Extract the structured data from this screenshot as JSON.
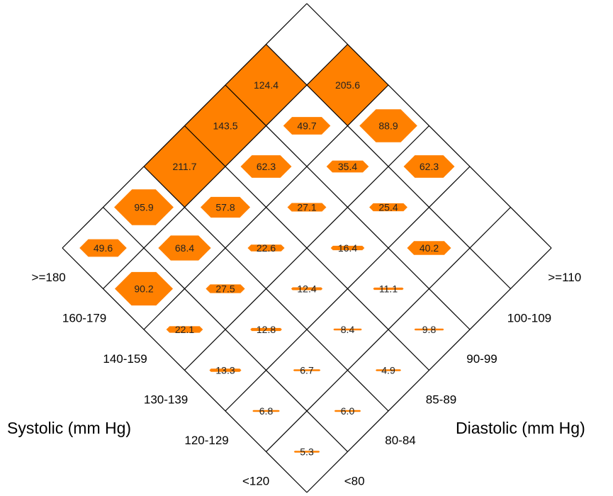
{
  "chart_data": {
    "type": "heatmap",
    "systolic_label": "Systolic (mm Hg)",
    "diastolic_label": "Diastolic (mm Hg)",
    "systolic_categories": [
      "<120",
      "120-129",
      "130-139",
      "140-159",
      "160-179",
      ">=180"
    ],
    "diastolic_categories": [
      "<80",
      "80-84",
      "85-89",
      "90-99",
      "100-109",
      ">=110"
    ],
    "values": [
      [
        5.3,
        6.0,
        4.9,
        9.8,
        null,
        null
      ],
      [
        6.8,
        6.7,
        8.4,
        11.1,
        40.2,
        null
      ],
      [
        13.3,
        12.8,
        12.4,
        16.4,
        25.4,
        62.3
      ],
      [
        22.1,
        27.5,
        22.6,
        27.1,
        35.4,
        88.9
      ],
      [
        90.2,
        68.4,
        57.8,
        62.3,
        49.7,
        205.6
      ],
      [
        49.6,
        95.9,
        211.7,
        143.5,
        124.4,
        null
      ]
    ],
    "grid": true,
    "glyph_color": "#ff8000"
  }
}
